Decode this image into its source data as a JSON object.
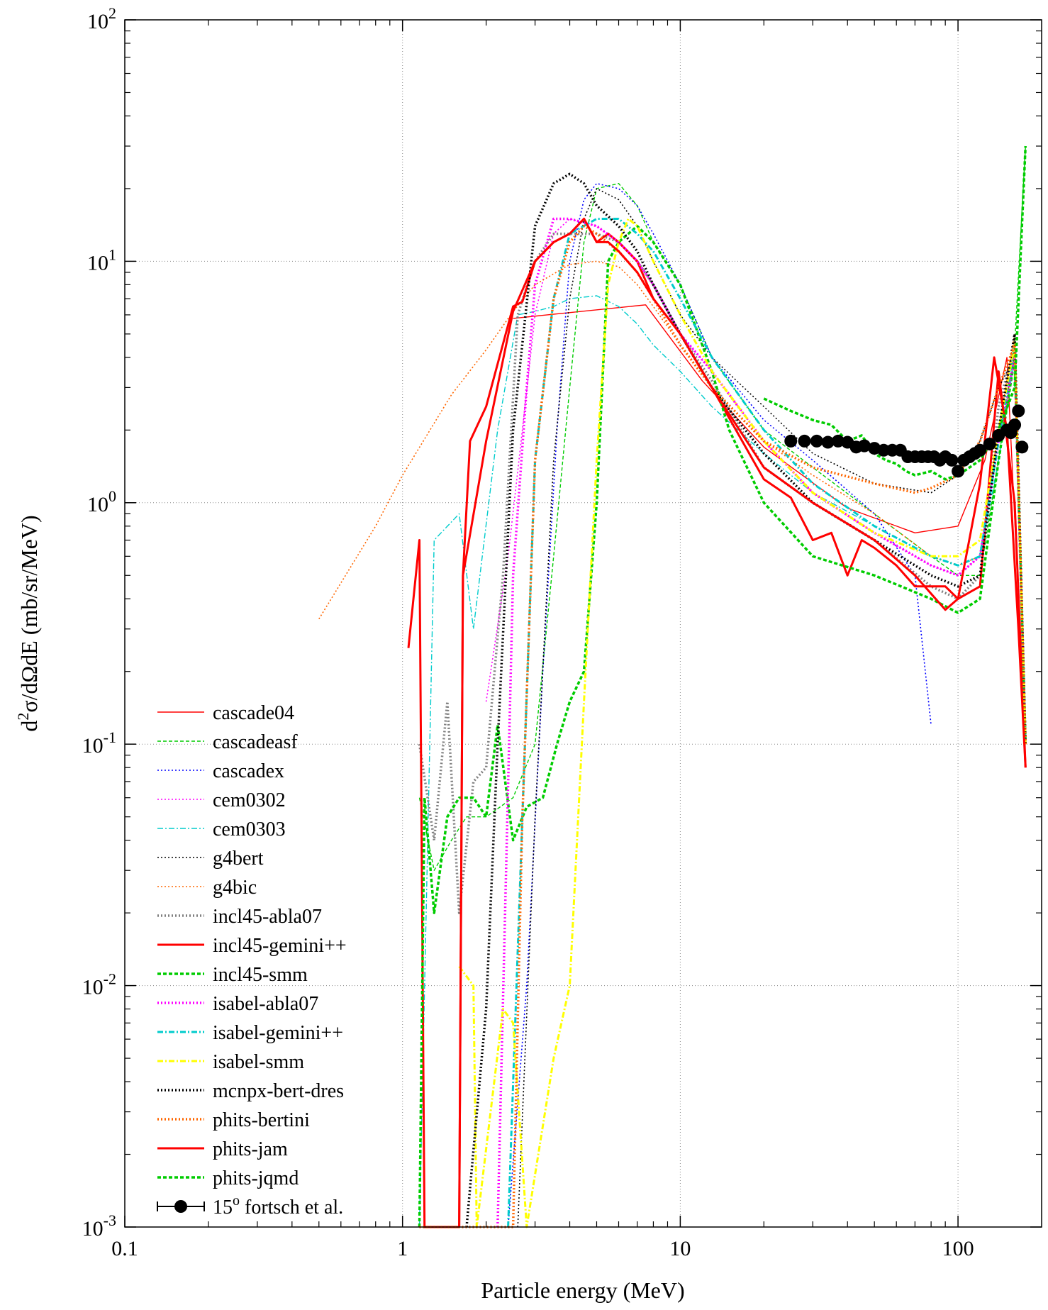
{
  "chart_data": {
    "type": "line",
    "xlabel": "Particle energy (MeV)",
    "ylabel": "d²σ/dΩdE (mb/sr/MeV)",
    "xscale": "log",
    "yscale": "log",
    "xlim": [
      0.1,
      200
    ],
    "ylim": [
      0.001,
      100
    ],
    "grid": true,
    "legend_position": "bottom-left",
    "x_ticks": [
      {
        "value": 0.1,
        "label": "0.1"
      },
      {
        "value": 1,
        "label": "1"
      },
      {
        "value": 10,
        "label": "10"
      },
      {
        "value": 100,
        "label": "100"
      }
    ],
    "y_ticks": [
      {
        "value": 0.001,
        "base": "10",
        "exp": "-3"
      },
      {
        "value": 0.01,
        "base": "10",
        "exp": "-2"
      },
      {
        "value": 0.1,
        "base": "10",
        "exp": "-1"
      },
      {
        "value": 1,
        "base": "10",
        "exp": "0"
      },
      {
        "value": 10,
        "base": "10",
        "exp": "1"
      },
      {
        "value": 100,
        "base": "10",
        "exp": "2"
      }
    ],
    "series": [
      {
        "name": "cascade04",
        "color": "#ff0000",
        "style": "solid-thin",
        "x": [
          2.5,
          7.5,
          12,
          20,
          40,
          70,
          100,
          125,
          150,
          175
        ],
        "y": [
          5.8,
          6.6,
          3.2,
          1.7,
          0.95,
          0.75,
          0.8,
          1.5,
          4.0,
          0.1
        ]
      },
      {
        "name": "cascadeasf",
        "color": "#00cc00",
        "style": "dashed-thin",
        "x": [
          1.15,
          1.3,
          1.5,
          1.7,
          2.0,
          2.5,
          3.0,
          3.5,
          4.0,
          4.5,
          5.0,
          6.0,
          7.0,
          8.0,
          10,
          13,
          20,
          30,
          50,
          80,
          100,
          120,
          140,
          160,
          175
        ],
        "y": [
          0.06,
          0.03,
          0.04,
          0.05,
          0.05,
          0.06,
          0.1,
          0.6,
          3.0,
          12,
          20,
          21,
          17,
          12,
          8,
          4,
          2.0,
          1.4,
          0.9,
          0.6,
          0.5,
          0.5,
          1.5,
          4.5,
          30
        ]
      },
      {
        "name": "cascadex",
        "color": "#0000ff",
        "style": "dotted-thin",
        "x": [
          2.4,
          2.8,
          3.2,
          3.6,
          4.0,
          4.5,
          5.0,
          6.0,
          7.0,
          8.0,
          10,
          13,
          20,
          30,
          50,
          70,
          80
        ],
        "y": [
          0.001,
          0.01,
          0.2,
          2.0,
          10,
          18,
          21,
          20,
          17,
          13,
          8,
          4,
          2.2,
          1.5,
          0.9,
          0.5,
          0.12
        ]
      },
      {
        "name": "cem0302",
        "color": "#ff00ff",
        "style": "dotted-thin",
        "x": [
          2.0,
          2.4,
          2.7,
          3.0,
          3.5,
          4.0,
          5.0,
          6.0,
          7.0,
          8.0,
          10,
          13,
          20,
          30,
          50,
          80,
          100,
          120,
          140,
          160,
          175
        ],
        "y": [
          0.15,
          0.6,
          2.0,
          6.0,
          13,
          15,
          14,
          12,
          10,
          8,
          5,
          3.5,
          1.8,
          1.1,
          0.75,
          0.55,
          0.5,
          0.6,
          1.8,
          4.0,
          0.1
        ]
      },
      {
        "name": "cem0303",
        "color": "#00cccc",
        "style": "dashdot-thin",
        "x": [
          1.15,
          1.3,
          1.6,
          1.8,
          2.2,
          2.6,
          3.0,
          3.5,
          4.0,
          5.0,
          6.0,
          7.0,
          8.0,
          10,
          13,
          20,
          30,
          50,
          80,
          100,
          120,
          140,
          160,
          175
        ],
        "y": [
          0.001,
          0.7,
          0.9,
          0.3,
          2.0,
          6.0,
          6.2,
          6.5,
          7.0,
          7.2,
          6.5,
          5.5,
          4.5,
          3.5,
          2.5,
          1.6,
          1.1,
          0.8,
          0.6,
          0.55,
          0.6,
          1.5,
          4.0,
          0.1
        ]
      },
      {
        "name": "g4bert",
        "color": "#000000",
        "style": "dotted-thin",
        "x": [
          2.6,
          3.0,
          3.5,
          4.0,
          4.5,
          5.0,
          6.0,
          7.0,
          8.0,
          10,
          13,
          20,
          30,
          50,
          80,
          100,
          120,
          140,
          160,
          175
        ],
        "y": [
          0.001,
          0.05,
          1.5,
          7.0,
          15,
          20,
          18,
          14,
          10,
          6,
          4,
          2.5,
          1.6,
          1.2,
          1.1,
          1.3,
          1.8,
          3.0,
          4.0,
          0.1
        ]
      },
      {
        "name": "g4bic",
        "color": "#ff6600",
        "style": "dotted-thin",
        "x": [
          0.5,
          0.8,
          1.0,
          1.5,
          2.0,
          2.5,
          3.0,
          4.0,
          5.0,
          6.0,
          7.0,
          8.0,
          10,
          13,
          20,
          30,
          50,
          80,
          100,
          120,
          140,
          160,
          175
        ],
        "y": [
          0.33,
          0.8,
          1.3,
          2.8,
          4.3,
          6.2,
          8.0,
          9.7,
          10.0,
          9.5,
          8.0,
          6.5,
          4.5,
          3.0,
          1.8,
          1.3,
          0.9,
          0.6,
          0.55,
          0.6,
          2.0,
          5.0,
          0.1
        ]
      },
      {
        "name": "incl45-abla07",
        "color": "#808080",
        "style": "dotted-thick",
        "x": [
          1.15,
          1.3,
          1.45,
          1.6,
          1.8,
          2.0,
          2.3,
          2.6,
          3.0,
          3.5,
          4.0,
          5.0,
          6.0,
          7.0,
          8.0,
          10,
          13,
          20,
          30,
          50,
          80,
          100,
          120,
          140,
          160,
          175
        ],
        "y": [
          0.1,
          0.04,
          0.15,
          0.02,
          0.07,
          0.08,
          0.5,
          6.0,
          10,
          13,
          13,
          13,
          12,
          10,
          8,
          5,
          3.2,
          1.4,
          1.0,
          0.7,
          0.45,
          0.4,
          0.5,
          2.5,
          4.5,
          0.1
        ]
      },
      {
        "name": "incl45-gemini++",
        "color": "#ff0000",
        "style": "solid-thick",
        "x": [
          1.05,
          1.15,
          1.2,
          1.6,
          1.65,
          1.75,
          2.0,
          2.5,
          2.7,
          3.0,
          3.5,
          4.0,
          4.5,
          5.0,
          5.5,
          6.0,
          7.0,
          8.0,
          10,
          13,
          20,
          25,
          30,
          35,
          40,
          45,
          50,
          60,
          70,
          80,
          90,
          100,
          120,
          140,
          160,
          175
        ],
        "y": [
          0.25,
          0.7,
          0.001,
          0.001,
          0.5,
          1.8,
          2.5,
          6.5,
          6.8,
          10,
          12,
          13,
          15,
          12,
          13,
          12,
          10,
          7,
          5,
          3,
          1.25,
          1.05,
          0.7,
          0.75,
          0.5,
          0.7,
          0.65,
          0.55,
          0.45,
          0.45,
          0.45,
          0.4,
          0.45,
          3.5,
          1.0,
          0.08
        ]
      },
      {
        "name": "incl45-smm",
        "color": "#00cc00",
        "style": "dashed-thick",
        "x": [
          1.15,
          1.2,
          1.3,
          1.45,
          1.6,
          1.8,
          2.0,
          2.2,
          2.5,
          2.8,
          3.2,
          3.6,
          4.0,
          4.5,
          5.0,
          5.5,
          6.0,
          7.0,
          8.0,
          10,
          13,
          15,
          20,
          30,
          50,
          80,
          100,
          120,
          140,
          160,
          175
        ],
        "y": [
          0.001,
          0.06,
          0.02,
          0.05,
          0.06,
          0.06,
          0.05,
          0.12,
          0.04,
          0.055,
          0.06,
          0.1,
          0.15,
          0.2,
          1.0,
          10,
          12,
          14,
          12,
          8,
          3.5,
          2.0,
          1.0,
          0.6,
          0.5,
          0.4,
          0.35,
          0.4,
          1.5,
          4.0,
          0.1
        ]
      },
      {
        "name": "isabel-abla07",
        "color": "#ff00ff",
        "style": "dotted-thick",
        "x": [
          2.2,
          2.5,
          2.8,
          3.0,
          3.5,
          4.0,
          5.0,
          6.0,
          7.0,
          8.0,
          10,
          13,
          20,
          30,
          50,
          80,
          100,
          120,
          140,
          160,
          175
        ],
        "y": [
          0.001,
          0.5,
          3.0,
          8.0,
          15,
          15,
          14,
          12,
          10,
          8,
          5,
          3.5,
          1.8,
          1.1,
          0.75,
          0.55,
          0.5,
          0.6,
          1.8,
          4.0,
          0.1
        ]
      },
      {
        "name": "isabel-gemini++",
        "color": "#00cccc",
        "style": "dashdot-thick",
        "x": [
          2.4,
          2.7,
          3.0,
          3.5,
          4.0,
          5.0,
          6.0,
          7.0,
          8.0,
          10,
          13,
          20,
          30,
          50,
          80,
          100,
          120,
          140,
          160,
          175
        ],
        "y": [
          0.001,
          0.05,
          1.5,
          7.0,
          13,
          15,
          15,
          13,
          11,
          7,
          4,
          2.0,
          1.2,
          0.8,
          0.6,
          0.55,
          0.6,
          1.8,
          4.5,
          0.1
        ]
      },
      {
        "name": "isabel-smm",
        "color": "#ffff00",
        "style": "dashdot-thick",
        "x": [
          1.6,
          1.8,
          1.85,
          2.3,
          2.5,
          2.8,
          3.5,
          4.0,
          4.5,
          5.0,
          5.5,
          6.0,
          6.5,
          7.0,
          8.0,
          10,
          13,
          20,
          30,
          50,
          80,
          100,
          120,
          140,
          160,
          175
        ],
        "y": [
          0.012,
          0.01,
          0.001,
          0.008,
          0.007,
          0.001,
          0.005,
          0.01,
          0.15,
          1.5,
          8.0,
          12,
          15,
          14,
          10,
          6,
          3.5,
          1.8,
          1.1,
          0.75,
          0.6,
          0.6,
          0.7,
          2.0,
          4.5,
          0.1
        ]
      },
      {
        "name": "mcnpx-bert-dres",
        "color": "#000000",
        "style": "dotted-thick",
        "x": [
          1.7,
          2.0,
          2.2,
          2.5,
          3.0,
          3.5,
          4.0,
          4.5,
          5.0,
          6.0,
          7.0,
          8.0,
          10,
          13,
          20,
          30,
          50,
          80,
          100,
          120,
          140,
          160,
          175
        ],
        "y": [
          0.001,
          0.008,
          0.1,
          2.0,
          14,
          21,
          23,
          21,
          17,
          14,
          11,
          8,
          5,
          3,
          1.6,
          1.0,
          0.7,
          0.5,
          0.45,
          0.5,
          2.0,
          5.0,
          0.1
        ]
      },
      {
        "name": "phits-bertini",
        "color": "#ff6600",
        "style": "dotted-thick",
        "x": [
          1.15,
          2.5,
          2.7,
          3.0,
          3.5,
          4.0,
          4.5,
          5.0,
          6.0,
          7.0,
          8.0,
          10,
          13,
          20,
          30,
          50,
          70,
          80,
          100,
          120,
          140,
          160,
          175
        ],
        "y": [
          0.001,
          0.001,
          0.05,
          1.5,
          7.0,
          12,
          14,
          13,
          11,
          9,
          7,
          4.5,
          3.0,
          1.8,
          1.4,
          1.2,
          1.1,
          1.15,
          1.3,
          1.8,
          3.0,
          4.5,
          0.1
        ]
      },
      {
        "name": "phits-jam",
        "color": "#ff0000",
        "style": "solid-thick",
        "x": [
          1.6,
          1.65,
          2.0,
          2.5,
          3.0,
          3.5,
          4.0,
          4.5,
          5.0,
          5.5,
          6.0,
          7.0,
          8.0,
          10,
          13,
          20,
          30,
          50,
          70,
          80,
          90,
          100,
          120,
          135,
          150,
          165,
          175
        ],
        "y": [
          0.001,
          0.5,
          1.8,
          6.2,
          10,
          12,
          13,
          15,
          12,
          12,
          11,
          9,
          7,
          5,
          3,
          1.4,
          1.0,
          0.7,
          0.5,
          0.42,
          0.36,
          0.4,
          1.2,
          4.0,
          2.0,
          0.3,
          0.08
        ]
      },
      {
        "name": "phits-jqmd",
        "color": "#00cc00",
        "style": "dashed-thick",
        "x": [
          20,
          25,
          30,
          35,
          40,
          45,
          50,
          55,
          60,
          65,
          70,
          80,
          90,
          100,
          110,
          120,
          140,
          160,
          175
        ],
        "y": [
          2.7,
          2.4,
          2.2,
          2.1,
          1.8,
          1.9,
          1.6,
          1.5,
          1.45,
          1.35,
          1.3,
          1.35,
          1.25,
          1.3,
          1.4,
          1.5,
          2.0,
          3.0,
          30
        ]
      }
    ],
    "experiment": {
      "name": "15° fortsch et al.",
      "legend_base": "15",
      "legend_sup": "o",
      "legend_rest": " fortsch et al.",
      "color": "#000000",
      "x": [
        25,
        28,
        31,
        34,
        37,
        40,
        43,
        46,
        50,
        54,
        58,
        62,
        66,
        70,
        74,
        78,
        82,
        86,
        90,
        95,
        100,
        105,
        110,
        115,
        120,
        130,
        140,
        150,
        155,
        160,
        165,
        170
      ],
      "y": [
        1.8,
        1.8,
        1.8,
        1.78,
        1.8,
        1.78,
        1.7,
        1.72,
        1.68,
        1.65,
        1.65,
        1.65,
        1.55,
        1.55,
        1.55,
        1.55,
        1.55,
        1.5,
        1.55,
        1.5,
        1.35,
        1.5,
        1.55,
        1.6,
        1.65,
        1.75,
        1.9,
        2.0,
        1.95,
        2.1,
        2.4,
        1.7
      ]
    }
  }
}
